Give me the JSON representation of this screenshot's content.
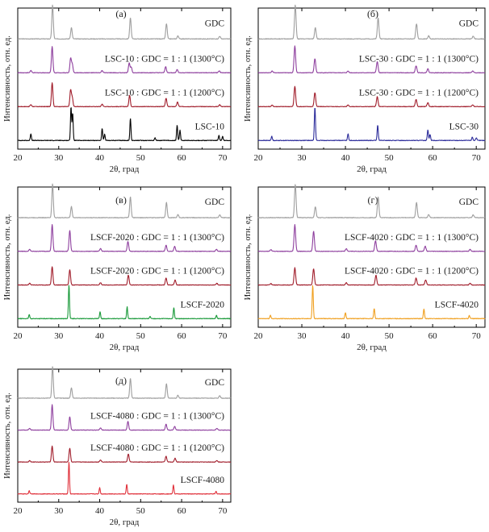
{
  "chart_data": [
    {
      "type": "line",
      "title": "(а)",
      "xlabel": "2θ, град",
      "ylabel": "Интенсивность, отн. ед.",
      "xlim": [
        20,
        72
      ],
      "xticks": [
        "20",
        "30",
        "40",
        "50",
        "60",
        "70"
      ],
      "grid": false,
      "series": [
        {
          "name": "GDC",
          "color": "#9e9e9e",
          "peaks": [
            [
              28.5,
              1.0
            ],
            [
              33.1,
              0.33
            ],
            [
              47.5,
              0.62
            ],
            [
              56.3,
              0.45
            ],
            [
              59.1,
              0.09
            ],
            [
              69.3,
              0.08
            ]
          ]
        },
        {
          "name": "LSC-10 : GDC = 1 : 1 (1300°C)",
          "color": "#8e3f9e",
          "peaks": [
            [
              23.2,
              0.08
            ],
            [
              28.4,
              0.93
            ],
            [
              32.9,
              0.5
            ],
            [
              33.3,
              0.3
            ],
            [
              40.6,
              0.08
            ],
            [
              47.2,
              0.35
            ],
            [
              47.7,
              0.2
            ],
            [
              56.1,
              0.22
            ],
            [
              58.9,
              0.12
            ],
            [
              69.2,
              0.07
            ]
          ]
        },
        {
          "name": "LSC-10 : GDC = 1 : 1 (1200°C)",
          "color": "#a01c2a",
          "peaks": [
            [
              23.2,
              0.07
            ],
            [
              28.4,
              0.85
            ],
            [
              32.9,
              0.58
            ],
            [
              33.3,
              0.32
            ],
            [
              40.6,
              0.09
            ],
            [
              47.3,
              0.4
            ],
            [
              56.2,
              0.3
            ],
            [
              59.0,
              0.16
            ],
            [
              69.3,
              0.07
            ]
          ]
        },
        {
          "name": "LSC-10",
          "color": "#000000",
          "peaks": [
            [
              23.2,
              0.2
            ],
            [
              33.0,
              1.0
            ],
            [
              33.4,
              0.8
            ],
            [
              40.6,
              0.35
            ],
            [
              41.2,
              0.18
            ],
            [
              47.5,
              0.65
            ],
            [
              53.5,
              0.08
            ],
            [
              58.9,
              0.45
            ],
            [
              59.6,
              0.3
            ],
            [
              69.1,
              0.15
            ],
            [
              70.0,
              0.12
            ]
          ]
        }
      ]
    },
    {
      "type": "line",
      "title": "(б)",
      "xlabel": "2θ, град",
      "ylabel": "Интенсивность, отн. ед.",
      "xlim": [
        20,
        72
      ],
      "xticks": [
        "20",
        "30",
        "40",
        "50",
        "60",
        "70"
      ],
      "grid": false,
      "series": [
        {
          "name": "GDC",
          "color": "#9e9e9e",
          "peaks": [
            [
              28.5,
              1.0
            ],
            [
              33.1,
              0.33
            ],
            [
              47.5,
              0.62
            ],
            [
              56.3,
              0.45
            ],
            [
              59.1,
              0.09
            ],
            [
              69.3,
              0.08
            ]
          ]
        },
        {
          "name": "LSC-30 : GDC = 1 : 1 (1300°C)",
          "color": "#8e3f9e",
          "peaks": [
            [
              23.2,
              0.06
            ],
            [
              28.4,
              0.95
            ],
            [
              33.0,
              0.5
            ],
            [
              40.6,
              0.06
            ],
            [
              47.3,
              0.4
            ],
            [
              56.2,
              0.25
            ],
            [
              58.9,
              0.14
            ],
            [
              69.2,
              0.06
            ]
          ]
        },
        {
          "name": "LSC-30 : GDC = 1 : 1 (1200°C)",
          "color": "#a01c2a",
          "peaks": [
            [
              23.2,
              0.05
            ],
            [
              28.4,
              0.72
            ],
            [
              33.0,
              0.5
            ],
            [
              40.6,
              0.06
            ],
            [
              47.3,
              0.35
            ],
            [
              56.2,
              0.25
            ],
            [
              58.9,
              0.14
            ],
            [
              69.2,
              0.06
            ]
          ]
        },
        {
          "name": "LSC-30",
          "color": "#2b2b9a",
          "peaks": [
            [
              23.1,
              0.12
            ],
            [
              33.0,
              1.0
            ],
            [
              40.6,
              0.2
            ],
            [
              47.4,
              0.45
            ],
            [
              58.9,
              0.32
            ],
            [
              59.4,
              0.18
            ],
            [
              69.1,
              0.1
            ],
            [
              70.0,
              0.08
            ]
          ]
        }
      ]
    },
    {
      "type": "line",
      "title": "(в)",
      "xlabel": "2θ, град",
      "ylabel": "Интенсивность, отн. ед.",
      "xlim": [
        20,
        72
      ],
      "xticks": [
        "20",
        "30",
        "40",
        "50",
        "60",
        "70"
      ],
      "grid": false,
      "series": [
        {
          "name": "GDC",
          "color": "#9e9e9e",
          "peaks": [
            [
              28.5,
              1.0
            ],
            [
              33.1,
              0.33
            ],
            [
              47.5,
              0.62
            ],
            [
              56.3,
              0.45
            ],
            [
              59.1,
              0.09
            ],
            [
              69.3,
              0.08
            ]
          ]
        },
        {
          "name": "LSCF-2020 : GDC = 1 : 1 (1300°C)",
          "color": "#8e3f9e",
          "peaks": [
            [
              22.9,
              0.07
            ],
            [
              28.4,
              0.95
            ],
            [
              32.7,
              0.75
            ],
            [
              40.2,
              0.1
            ],
            [
              46.9,
              0.35
            ],
            [
              56.2,
              0.22
            ],
            [
              58.3,
              0.18
            ],
            [
              68.5,
              0.07
            ]
          ]
        },
        {
          "name": "LSCF-2020 : GDC = 1 : 1 (1200°C)",
          "color": "#a01c2a",
          "peaks": [
            [
              22.9,
              0.06
            ],
            [
              28.4,
              0.65
            ],
            [
              32.7,
              0.55
            ],
            [
              40.2,
              0.08
            ],
            [
              47.0,
              0.35
            ],
            [
              56.2,
              0.25
            ],
            [
              58.4,
              0.18
            ],
            [
              68.6,
              0.06
            ]
          ]
        },
        {
          "name": "LSCF-2020",
          "color": "#1a9a3a",
          "peaks": [
            [
              22.8,
              0.12
            ],
            [
              32.5,
              1.0
            ],
            [
              40.1,
              0.2
            ],
            [
              46.7,
              0.35
            ],
            [
              52.3,
              0.07
            ],
            [
              58.1,
              0.32
            ],
            [
              68.5,
              0.1
            ]
          ]
        }
      ]
    },
    {
      "type": "line",
      "title": "(г)",
      "xlabel": "2θ, град",
      "ylabel": "Интенсивность, отн. ед.",
      "xlim": [
        20,
        72
      ],
      "xticks": [
        "20",
        "30",
        "40",
        "50",
        "60",
        "70"
      ],
      "grid": false,
      "series": [
        {
          "name": "GDC",
          "color": "#9e9e9e",
          "peaks": [
            [
              28.5,
              1.0
            ],
            [
              33.1,
              0.33
            ],
            [
              47.5,
              0.62
            ],
            [
              56.3,
              0.45
            ],
            [
              59.1,
              0.09
            ],
            [
              69.3,
              0.08
            ]
          ]
        },
        {
          "name": "LSCF-4020 : GDC = 1 : 1 (1300°C)",
          "color": "#8e3f9e",
          "peaks": [
            [
              22.9,
              0.06
            ],
            [
              28.4,
              0.95
            ],
            [
              32.7,
              0.72
            ],
            [
              40.2,
              0.09
            ],
            [
              46.9,
              0.38
            ],
            [
              56.2,
              0.22
            ],
            [
              58.3,
              0.18
            ],
            [
              68.6,
              0.07
            ]
          ]
        },
        {
          "name": "LSCF-4020 : GDC = 1 : 1 (1200°C)",
          "color": "#a01c2a",
          "peaks": [
            [
              22.9,
              0.05
            ],
            [
              28.4,
              0.62
            ],
            [
              32.7,
              0.58
            ],
            [
              40.2,
              0.08
            ],
            [
              47.0,
              0.35
            ],
            [
              56.2,
              0.25
            ],
            [
              58.4,
              0.18
            ],
            [
              68.6,
              0.06
            ]
          ]
        },
        {
          "name": "LSCF-4020",
          "color": "#f0a020",
          "peaks": [
            [
              22.8,
              0.1
            ],
            [
              32.5,
              1.0
            ],
            [
              40.0,
              0.18
            ],
            [
              46.6,
              0.3
            ],
            [
              58.0,
              0.28
            ],
            [
              68.4,
              0.09
            ]
          ]
        }
      ]
    },
    {
      "type": "line",
      "title": "(д)",
      "xlabel": "2θ, град",
      "ylabel": "Интенсивность, отн. ед.",
      "xlim": [
        20,
        72
      ],
      "xticks": [
        "20",
        "30",
        "40",
        "50",
        "60",
        "70"
      ],
      "grid": false,
      "series": [
        {
          "name": "GDC",
          "color": "#9e9e9e",
          "peaks": [
            [
              28.5,
              1.0
            ],
            [
              33.1,
              0.33
            ],
            [
              47.5,
              0.62
            ],
            [
              56.3,
              0.45
            ],
            [
              59.1,
              0.09
            ],
            [
              69.3,
              0.08
            ]
          ]
        },
        {
          "name": "LSCF-4080 : GDC = 1 : 1 (1300°C)",
          "color": "#8e3f9e",
          "peaks": [
            [
              22.9,
              0.06
            ],
            [
              28.4,
              0.95
            ],
            [
              32.7,
              0.5
            ],
            [
              40.2,
              0.08
            ],
            [
              46.9,
              0.32
            ],
            [
              56.2,
              0.22
            ],
            [
              58.3,
              0.14
            ],
            [
              68.6,
              0.06
            ]
          ]
        },
        {
          "name": "LSCF-4080 : GDC = 1 : 1 (1200°C)",
          "color": "#a01c2a",
          "peaks": [
            [
              22.9,
              0.05
            ],
            [
              28.4,
              0.6
            ],
            [
              32.7,
              0.52
            ],
            [
              40.2,
              0.08
            ],
            [
              47.0,
              0.3
            ],
            [
              56.2,
              0.22
            ],
            [
              58.4,
              0.14
            ],
            [
              68.6,
              0.05
            ]
          ]
        },
        {
          "name": "LSCF-4080",
          "color": "#e0303a",
          "peaks": [
            [
              22.8,
              0.1
            ],
            [
              32.5,
              1.0
            ],
            [
              40.0,
              0.2
            ],
            [
              46.6,
              0.3
            ],
            [
              58.0,
              0.28
            ],
            [
              68.4,
              0.08
            ]
          ]
        }
      ]
    }
  ]
}
